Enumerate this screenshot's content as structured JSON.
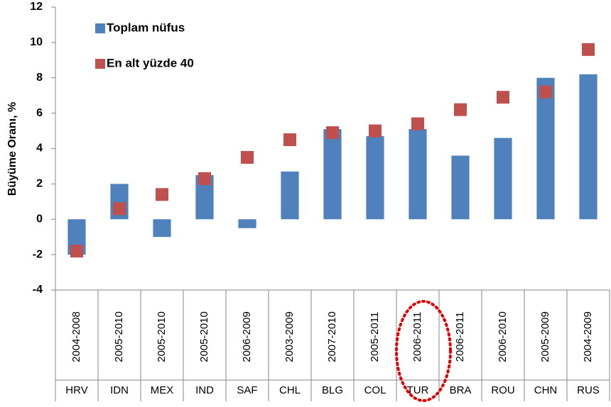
{
  "chart_data": {
    "type": "bar",
    "y_label": "Büyüme Oranı, %",
    "categories": [
      "HRV",
      "IDN",
      "MEX",
      "IND",
      "SAF",
      "CHL",
      "BLG",
      "COL",
      "TUR",
      "BRA",
      "ROU",
      "CHN",
      "RUS"
    ],
    "periods": [
      "2004-2008",
      "2005-2010",
      "2005-2010",
      "2005-2010",
      "2006-2009",
      "2003-2009",
      "2007-2010",
      "2005-2011",
      "2006-2011",
      "2006-2011",
      "2006-2010",
      "2005-2009",
      "2004-2009"
    ],
    "series": [
      {
        "name": "Toplam nüfus",
        "type": "bar",
        "color": "#4f81bd",
        "values": [
          -2.0,
          2.0,
          -1.0,
          2.5,
          -0.5,
          2.7,
          5.1,
          4.7,
          5.1,
          3.6,
          4.6,
          8.0,
          8.2
        ]
      },
      {
        "name": "En alt yüzde 40",
        "type": "scatter",
        "color": "#c0504d",
        "values": [
          -1.8,
          0.6,
          1.4,
          2.3,
          3.5,
          4.5,
          4.9,
          5.0,
          5.4,
          6.2,
          6.9,
          7.2,
          9.6
        ]
      }
    ],
    "ylim": [
      -4,
      12
    ],
    "yticks": [
      -4,
      -2,
      0,
      2,
      4,
      6,
      8,
      10,
      12
    ]
  }
}
